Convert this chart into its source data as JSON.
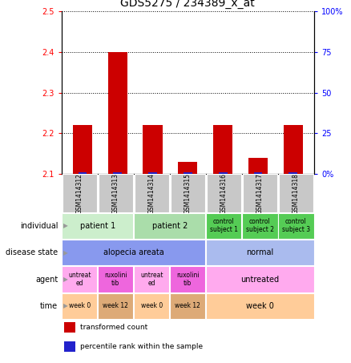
{
  "title": "GDS5275 / 234389_x_at",
  "samples": [
    "GSM1414312",
    "GSM1414313",
    "GSM1414314",
    "GSM1414315",
    "GSM1414316",
    "GSM1414317",
    "GSM1414318"
  ],
  "transformed_count": [
    2.22,
    2.4,
    2.22,
    2.13,
    2.22,
    2.14,
    2.22
  ],
  "percentile_rank": [
    1,
    1,
    1,
    1,
    1,
    1,
    1
  ],
  "ylim": [
    2.1,
    2.5
  ],
  "yticks": [
    2.1,
    2.2,
    2.3,
    2.4,
    2.5
  ],
  "y2ticks": [
    0,
    25,
    50,
    75,
    100
  ],
  "bar_color": "#cc0000",
  "percentile_color": "#2222cc",
  "sample_bg": "#c8c8c8",
  "rows": [
    {
      "label": "individual",
      "cells": [
        {
          "text": "patient 1",
          "span": 2,
          "color": "#cceecc",
          "fontsize": 7
        },
        {
          "text": "patient 2",
          "span": 2,
          "color": "#aaddaa",
          "fontsize": 7
        },
        {
          "text": "control\nsubject 1",
          "span": 1,
          "color": "#55cc55",
          "fontsize": 5.5
        },
        {
          "text": "control\nsubject 2",
          "span": 1,
          "color": "#55cc55",
          "fontsize": 5.5
        },
        {
          "text": "control\nsubject 3",
          "span": 1,
          "color": "#55cc55",
          "fontsize": 5.5
        }
      ]
    },
    {
      "label": "disease state",
      "cells": [
        {
          "text": "alopecia areata",
          "span": 4,
          "color": "#8899ee",
          "fontsize": 7
        },
        {
          "text": "normal",
          "span": 3,
          "color": "#aabbee",
          "fontsize": 7
        }
      ]
    },
    {
      "label": "agent",
      "cells": [
        {
          "text": "untreat\ned",
          "span": 1,
          "color": "#ffaaee",
          "fontsize": 5.5
        },
        {
          "text": "ruxolini\ntib",
          "span": 1,
          "color": "#ee66dd",
          "fontsize": 5.5
        },
        {
          "text": "untreat\ned",
          "span": 1,
          "color": "#ffaaee",
          "fontsize": 5.5
        },
        {
          "text": "ruxolini\ntib",
          "span": 1,
          "color": "#ee66dd",
          "fontsize": 5.5
        },
        {
          "text": "untreated",
          "span": 3,
          "color": "#ffaaee",
          "fontsize": 7
        }
      ]
    },
    {
      "label": "time",
      "cells": [
        {
          "text": "week 0",
          "span": 1,
          "color": "#ffcc99",
          "fontsize": 5.5
        },
        {
          "text": "week 12",
          "span": 1,
          "color": "#ddaa77",
          "fontsize": 5.5
        },
        {
          "text": "week 0",
          "span": 1,
          "color": "#ffcc99",
          "fontsize": 5.5
        },
        {
          "text": "week 12",
          "span": 1,
          "color": "#ddaa77",
          "fontsize": 5.5
        },
        {
          "text": "week 0",
          "span": 3,
          "color": "#ffcc99",
          "fontsize": 7
        }
      ]
    }
  ],
  "legend": [
    {
      "color": "#cc0000",
      "label": "transformed count"
    },
    {
      "color": "#2222cc",
      "label": "percentile rank within the sample"
    }
  ],
  "label_fontsize": 7,
  "sample_label_fontsize": 5.5,
  "title_fontsize": 10,
  "arrow_color": "#999999"
}
